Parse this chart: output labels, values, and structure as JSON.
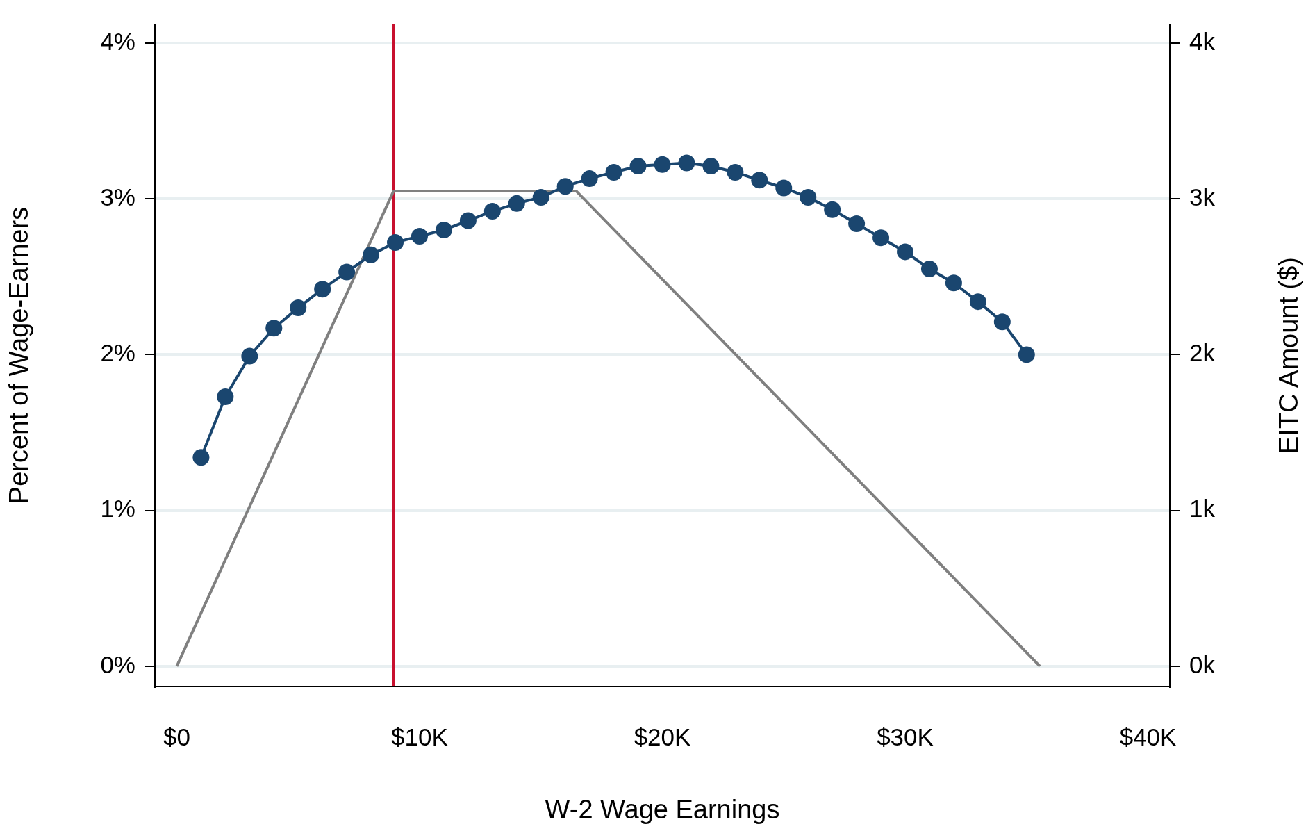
{
  "chart_data": {
    "type": "line",
    "xlabel": "W-2 Wage Earnings",
    "ylabel": "Percent of Wage-Earners",
    "y2label": "EITC Amount ($)",
    "series": [
      {
        "color": "#1a466f",
        "marker": "circle",
        "x": [
          1000,
          2000,
          3000,
          4000,
          5000,
          6000,
          7000,
          8000,
          9000,
          10000,
          11000,
          12000,
          13000,
          14000,
          15000,
          16000,
          17000,
          18000,
          19000,
          20000,
          21000,
          22000,
          23000,
          24000,
          25000,
          26000,
          27000,
          28000,
          29000,
          30000,
          31000,
          32000,
          33000,
          34000,
          35000
        ],
        "values": [
          1.34,
          1.73,
          1.99,
          2.17,
          2.3,
          2.42,
          2.53,
          2.64,
          2.72,
          2.76,
          2.8,
          2.86,
          2.92,
          2.97,
          3.01,
          3.08,
          3.13,
          3.17,
          3.21,
          3.22,
          3.23,
          3.21,
          3.17,
          3.12,
          3.07,
          3.01,
          2.93,
          2.84,
          2.75,
          2.66,
          2.55,
          2.46,
          2.34,
          2.21,
          2.0
        ]
      },
      {
        "color": "#808080",
        "marker": "none",
        "axis": "y2",
        "x": [
          0,
          8930,
          16450,
          35550
        ],
        "values": [
          0,
          3050,
          3050,
          0
        ]
      }
    ],
    "xlim": [
      -900,
      40900
    ],
    "xticks": [
      {
        "value": 0,
        "label": "$0"
      },
      {
        "value": 10000,
        "label": "$10K"
      },
      {
        "value": 20000,
        "label": "$20K"
      },
      {
        "value": 30000,
        "label": "$30K"
      },
      {
        "value": 40000,
        "label": "$40K"
      }
    ],
    "ylim": [
      -0.13,
      4.12
    ],
    "yticks": [
      {
        "value": 0,
        "label": "0%"
      },
      {
        "value": 1,
        "label": "1%"
      },
      {
        "value": 2,
        "label": "2%"
      },
      {
        "value": 3,
        "label": "3%"
      },
      {
        "value": 4,
        "label": "4%"
      }
    ],
    "y2lim": [
      -130,
      4120
    ],
    "y2ticks": [
      {
        "value": 0,
        "label": "0k"
      },
      {
        "value": 1000,
        "label": "1k"
      },
      {
        "value": 2000,
        "label": "2k"
      },
      {
        "value": 3000,
        "label": "3k"
      },
      {
        "value": 4000,
        "label": "4k"
      }
    ],
    "ref_lines": [
      {
        "axis": "x",
        "value": 8930,
        "color": "#c8102e"
      }
    ],
    "grid": "y",
    "legend": false
  }
}
